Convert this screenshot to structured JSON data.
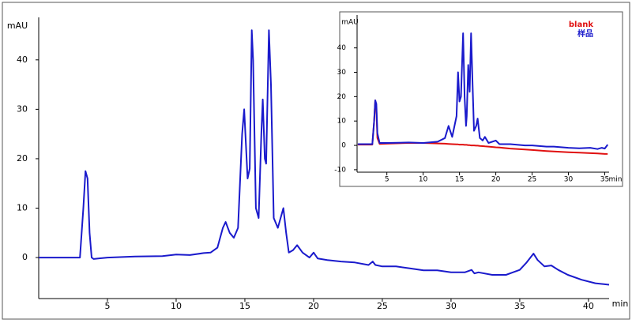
{
  "chart_data": [
    {
      "type": "line",
      "ylabel": "mAU",
      "xlabel": "min",
      "xlim": [
        0,
        41.5
      ],
      "ylim": [
        -8.3,
        48.6
      ],
      "xticks": [
        5,
        10,
        15,
        20,
        25,
        30,
        35,
        40
      ],
      "yticks": [
        0,
        10,
        20,
        30,
        40
      ],
      "x": [
        0,
        3.0,
        3.25,
        3.4,
        3.55,
        3.7,
        3.85,
        4.0,
        5,
        7,
        9,
        10,
        11,
        12,
        12.5,
        13,
        13.4,
        13.6,
        13.9,
        14.2,
        14.5,
        14.8,
        14.95,
        15.2,
        15.35,
        15.5,
        15.6,
        15.8,
        16.0,
        16.2,
        16.3,
        16.45,
        16.55,
        16.75,
        16.9,
        17.1,
        17.4,
        17.6,
        17.8,
        18.0,
        18.2,
        18.5,
        18.8,
        19.2,
        19.7,
        20.0,
        20.3,
        21,
        22,
        23,
        24,
        24.3,
        24.5,
        25,
        26,
        27,
        28,
        29,
        30,
        31,
        31.5,
        31.7,
        32,
        33,
        34,
        34.5,
        35,
        35.5,
        36,
        36.3,
        36.8,
        37.3,
        37.8,
        38.5,
        39.5,
        40.5,
        41.5
      ],
      "series": [
        {
          "color": "#1a1acc",
          "values": [
            0,
            0,
            10,
            17.5,
            16,
            5,
            0,
            -0.3,
            0,
            0.2,
            0.3,
            0.6,
            0.5,
            0.9,
            1,
            2,
            6,
            7.2,
            5,
            4,
            6,
            25,
            30,
            16,
            18,
            46,
            40,
            10,
            8,
            25,
            32,
            20,
            19,
            46,
            35,
            8,
            6,
            8,
            10,
            5,
            1,
            1.5,
            2.5,
            1,
            0,
            1,
            -0.2,
            -0.5,
            -0.8,
            -1,
            -1.5,
            -0.8,
            -1.5,
            -1.8,
            -1.8,
            -2.2,
            -2.6,
            -2.6,
            -3,
            -3,
            -2.5,
            -3.2,
            -3,
            -3.5,
            -3.5,
            -3,
            -2.5,
            -1,
            0.8,
            -0.5,
            -1.8,
            -1.6,
            -2.5,
            -3.5,
            -4.5,
            -5.2,
            -5.5
          ]
        }
      ]
    },
    {
      "type": "line",
      "ylabel": "mAU",
      "xlabel": "min",
      "legend": "upper right",
      "xlim": [
        0.9,
        35.6
      ],
      "ylim": [
        -11,
        53.5
      ],
      "xticks": [
        5,
        10,
        15,
        20,
        25,
        30,
        35
      ],
      "yticks": [
        -10,
        0,
        10,
        20,
        30,
        40
      ],
      "x": [
        1,
        3,
        3.25,
        3.4,
        3.55,
        3.7,
        4,
        5,
        8,
        10,
        12,
        13,
        13.5,
        14,
        14.6,
        14.8,
        15.0,
        15.2,
        15.5,
        15.7,
        15.9,
        16.0,
        16.2,
        16.4,
        16.6,
        16.8,
        17.0,
        17.3,
        17.5,
        17.8,
        18.2,
        18.5,
        19,
        20,
        20.5,
        22,
        24,
        25,
        27,
        28,
        30,
        31.5,
        33,
        34,
        34.6,
        35,
        35.4
      ],
      "series": [
        {
          "name": "blank",
          "color": "#e01010",
          "values": [
            0.3,
            0.3,
            10,
            18.5,
            15,
            3,
            0.6,
            0.7,
            1,
            1,
            0.8,
            0.7,
            0.6,
            0.5,
            0.4,
            0.4,
            0.3,
            0.3,
            0.3,
            0.2,
            0.2,
            0.2,
            0.1,
            0.1,
            0,
            0,
            0,
            -0.1,
            -0.1,
            -0.2,
            -0.3,
            -0.4,
            -0.5,
            -0.8,
            -0.9,
            -1.3,
            -1.7,
            -1.9,
            -2.3,
            -2.5,
            -2.8,
            -3,
            -3.2,
            -3.3,
            -3.4,
            -3.5,
            -3.5
          ]
        },
        {
          "name": "样品",
          "color": "#1a1acc",
          "values": [
            0.5,
            0.5,
            10,
            18.5,
            17,
            5,
            1,
            1,
            1.2,
            1,
            1.5,
            3,
            8,
            3.5,
            12,
            30,
            18,
            20,
            46,
            20,
            8,
            12,
            33,
            22,
            46,
            25,
            6,
            8,
            11,
            3,
            2,
            3.5,
            1,
            2,
            0.5,
            0.5,
            0,
            0,
            -0.5,
            -0.5,
            -1,
            -1.2,
            -1,
            -1.5,
            -1,
            -1.3,
            0.3
          ]
        }
      ]
    }
  ]
}
